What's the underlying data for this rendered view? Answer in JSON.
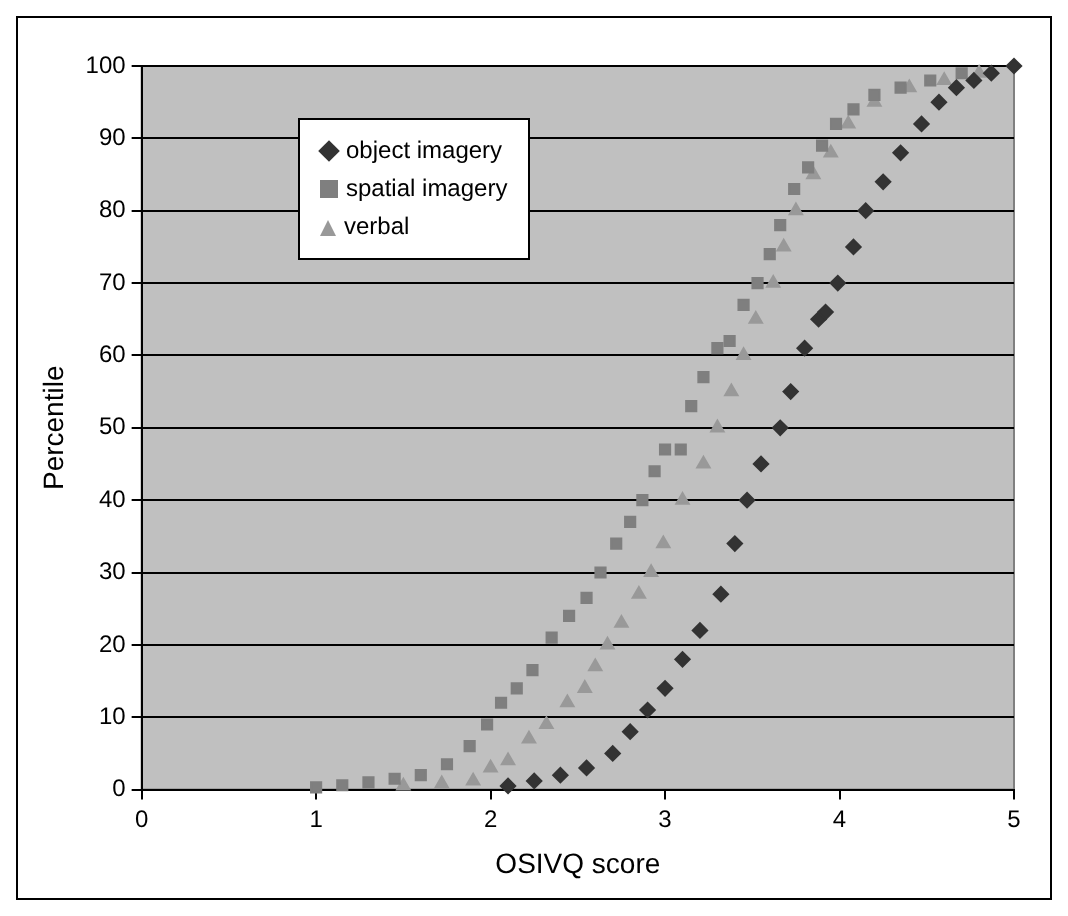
{
  "chart_data": {
    "type": "scatter",
    "xlabel": "OSIVQ score",
    "ylabel": "Percentile",
    "xlim": [
      0,
      5
    ],
    "xticks": [
      0,
      1,
      2,
      3,
      4,
      5
    ],
    "ylim": [
      0,
      100
    ],
    "yticks": [
      0,
      10,
      20,
      30,
      40,
      50,
      60,
      70,
      80,
      90,
      100
    ],
    "grid": "y",
    "legend": "top left",
    "series": [
      {
        "name": "object imagery",
        "color": "#333333",
        "marker": "diamond",
        "x": [
          2.1,
          2.25,
          2.4,
          2.55,
          2.7,
          2.8,
          2.9,
          3.0,
          3.1,
          3.2,
          3.32,
          3.4,
          3.47,
          3.55,
          3.66,
          3.72,
          3.8,
          3.88,
          3.92,
          3.99,
          4.08,
          4.15,
          4.25,
          4.35,
          4.47,
          4.57,
          4.67,
          4.77,
          4.87,
          5.0
        ],
        "values": [
          0.5,
          1.2,
          2,
          3,
          5,
          8,
          11,
          14,
          18,
          22,
          27,
          34,
          40,
          45,
          50,
          55,
          61,
          65,
          66,
          70,
          75,
          80,
          84,
          88,
          92,
          95,
          97,
          98,
          99,
          100
        ]
      },
      {
        "name": "spatial imagery",
        "color": "#7f7f7f",
        "marker": "square",
        "x": [
          1.0,
          1.15,
          1.3,
          1.45,
          1.6,
          1.75,
          1.88,
          1.98,
          2.06,
          2.15,
          2.24,
          2.35,
          2.45,
          2.55,
          2.63,
          2.72,
          2.8,
          2.87,
          2.94,
          3.0,
          3.09,
          3.15,
          3.22,
          3.3,
          3.37,
          3.45,
          3.53,
          3.6,
          3.66,
          3.74,
          3.82,
          3.9,
          3.98,
          4.08,
          4.2,
          4.35,
          4.52,
          4.7
        ],
        "values": [
          0.3,
          0.6,
          1,
          1.5,
          2,
          3.5,
          6,
          9,
          12,
          14,
          16.5,
          21,
          24,
          26.5,
          30,
          34,
          37,
          40,
          44,
          47,
          47,
          53,
          57,
          61,
          62,
          67,
          70,
          74,
          78,
          83,
          86,
          89,
          92,
          94,
          96,
          97,
          98,
          99
        ]
      },
      {
        "name": "verbal",
        "color": "#999999",
        "marker": "triangle",
        "x": [
          1.5,
          1.72,
          1.9,
          2.0,
          2.1,
          2.22,
          2.32,
          2.44,
          2.54,
          2.6,
          2.67,
          2.75,
          2.85,
          2.92,
          2.99,
          3.1,
          3.22,
          3.3,
          3.38,
          3.45,
          3.52,
          3.62,
          3.68,
          3.75,
          3.85,
          3.95,
          4.05,
          4.2,
          4.4,
          4.6,
          4.8
        ],
        "values": [
          0.5,
          0.8,
          1.2,
          3,
          4,
          7,
          9,
          12,
          14,
          17,
          20,
          23,
          27,
          30,
          34,
          40,
          45,
          50,
          55,
          60,
          65,
          70,
          75,
          80,
          85,
          88,
          92,
          95,
          97,
          98,
          99
        ]
      }
    ]
  }
}
